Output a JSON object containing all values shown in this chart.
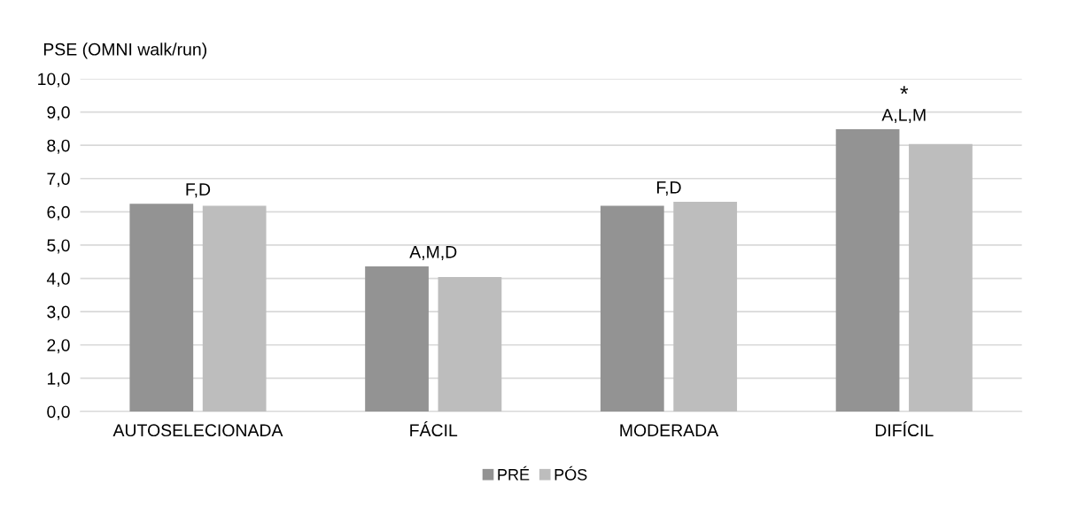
{
  "chart_data": {
    "type": "bar",
    "ylabel": "PSE (OMNI walk/run)",
    "categories": [
      "AUTOSELECIONADA",
      "FÁCIL",
      "MODERADA",
      "DIFÍCIL"
    ],
    "series": [
      {
        "name": "PRÉ",
        "color": "#939393",
        "values": [
          6.24,
          4.36,
          6.18,
          8.48
        ]
      },
      {
        "name": "PÓS",
        "color": "#bdbdbd",
        "values": [
          6.18,
          4.04,
          6.3,
          8.04
        ]
      }
    ],
    "ylim": [
      0,
      10
    ],
    "yticks": [
      {
        "value": 0,
        "label": "0,0"
      },
      {
        "value": 1,
        "label": "1,0"
      },
      {
        "value": 2,
        "label": "2,0"
      },
      {
        "value": 3,
        "label": "3,0"
      },
      {
        "value": 4,
        "label": "4,0"
      },
      {
        "value": 5,
        "label": "5,0"
      },
      {
        "value": 6,
        "label": "6,0"
      },
      {
        "value": 7,
        "label": "7,0"
      },
      {
        "value": 8,
        "label": "8,0"
      },
      {
        "value": 9,
        "label": "9,0"
      },
      {
        "value": 10,
        "label": "10,0"
      }
    ],
    "annotations": [
      "F,D",
      "A,M,D",
      "F,D",
      "A,L,M",
      "*"
    ],
    "grid": "y",
    "legend": "bottom"
  }
}
